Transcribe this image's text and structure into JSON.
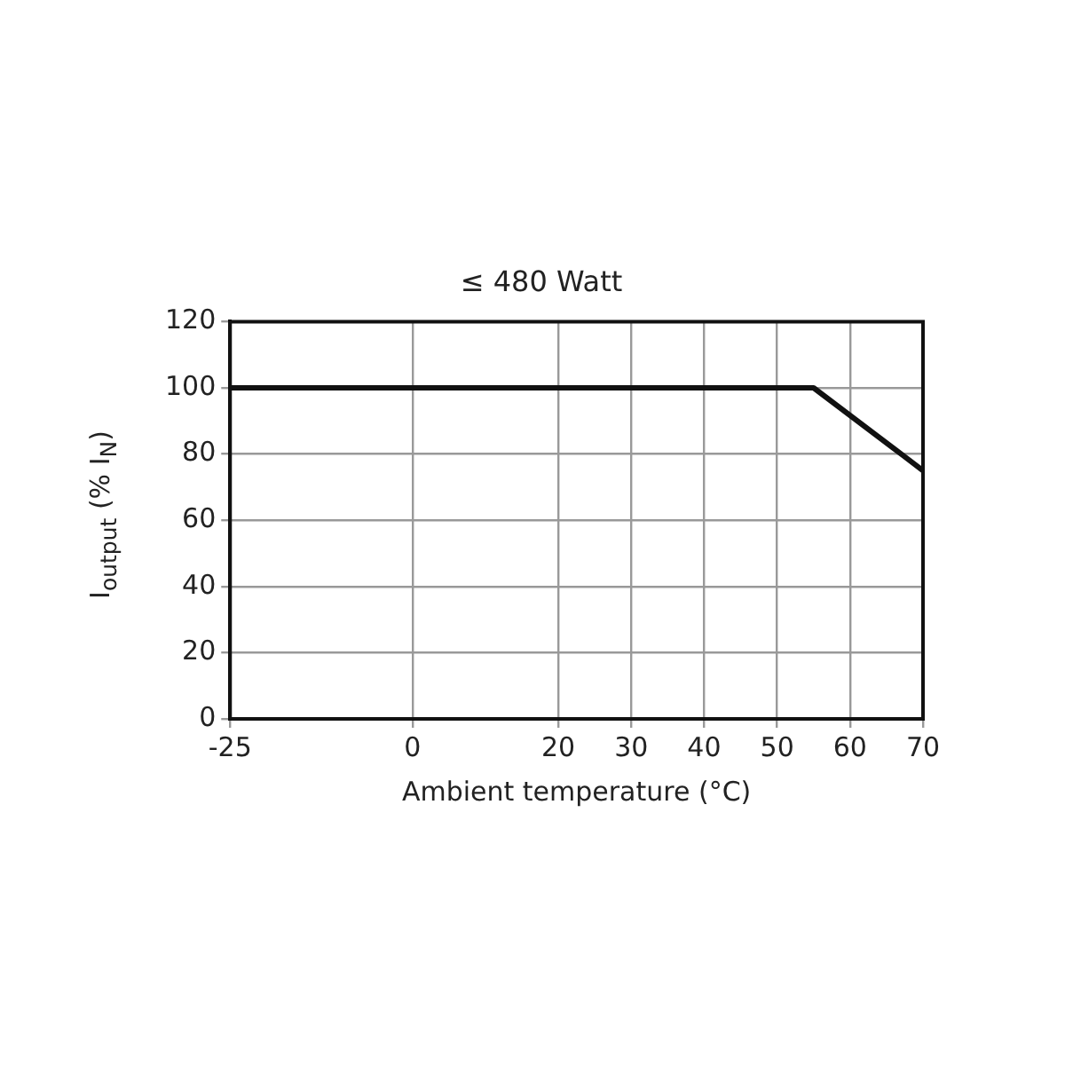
{
  "chart_data": {
    "type": "line",
    "title": "≤ 480 Watt",
    "xlabel": "Ambient temperature (°C)",
    "ylabel": "I$_{output}$ (% I$_{N}$)",
    "x": [
      -25,
      55,
      70
    ],
    "series": [
      {
        "color": "#111111",
        "values": [
          100,
          100,
          75
        ]
      }
    ],
    "xlim": [
      -25,
      70
    ],
    "xticks": [
      -25,
      0,
      20,
      30,
      40,
      50,
      60,
      70
    ],
    "ylim": [
      0,
      120
    ],
    "yticks": [
      0,
      20,
      40,
      60,
      80,
      100,
      120
    ],
    "grid": true,
    "legend": false,
    "marker": "none",
    "line_style": "solid"
  }
}
